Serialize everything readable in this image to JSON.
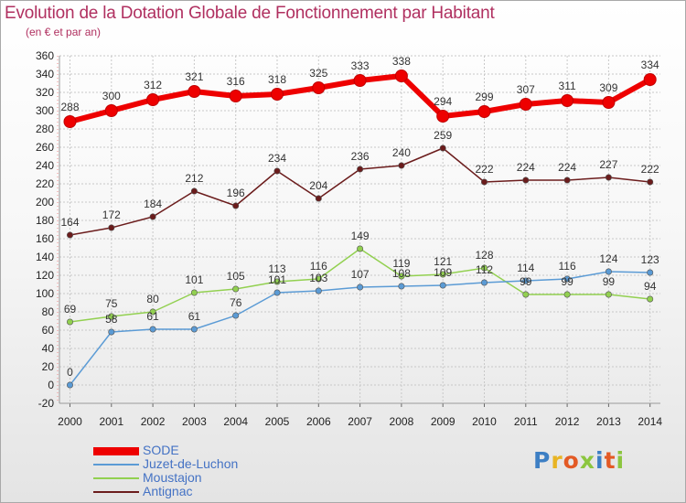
{
  "title": "Evolution de la Dotation Globale de Fonctionnement par Habitant",
  "subtitle": "(en € et par an)",
  "logo": {
    "text": "Proxiti",
    "letters": [
      {
        "char": "P",
        "color": "#3d7fc4"
      },
      {
        "char": "r",
        "color": "#e8b423"
      },
      {
        "char": "o",
        "color": "#e35a25"
      },
      {
        "char": "x",
        "color": "#8cc63f"
      },
      {
        "char": "i",
        "color": "#3d7fc4"
      },
      {
        "char": "t",
        "color": "#e35a25"
      },
      {
        "char": "i",
        "color": "#8cc63f"
      }
    ]
  },
  "chart_data": {
    "type": "line",
    "title": "Evolution de la Dotation Globale de Fonctionnement par Habitant",
    "subtitle": "(en € et par an)",
    "xlabel": "",
    "ylabel": "",
    "x": [
      "2000",
      "2001",
      "2002",
      "2003",
      "2004",
      "2005",
      "2006",
      "2007",
      "2008",
      "2009",
      "2010",
      "2011",
      "2012",
      "2013",
      "2014"
    ],
    "ylim": [
      -20,
      360
    ],
    "yticks": [
      -20,
      0,
      20,
      40,
      60,
      80,
      100,
      120,
      140,
      160,
      180,
      200,
      220,
      240,
      260,
      280,
      300,
      320,
      340,
      360
    ],
    "grid": true,
    "legend_position": "bottom-left",
    "series": [
      {
        "name": "SODE",
        "color": "#ee0000",
        "values": [
          288,
          300,
          312,
          321,
          316,
          318,
          325,
          333,
          338,
          294,
          299,
          307,
          311,
          309,
          334
        ]
      },
      {
        "name": "Juzet-de-Luchon",
        "color": "#5b9bd5",
        "values": [
          0,
          58,
          61,
          61,
          76,
          101,
          103,
          107,
          108,
          109,
          112,
          114,
          116,
          124,
          123
        ]
      },
      {
        "name": "Moustajon",
        "color": "#92d050",
        "values": [
          69,
          75,
          80,
          101,
          105,
          113,
          116,
          149,
          119,
          121,
          128,
          99,
          99,
          99,
          94
        ]
      },
      {
        "name": "Antignac",
        "color": "#6b1c1c",
        "values": [
          164,
          172,
          184,
          212,
          196,
          234,
          204,
          236,
          240,
          259,
          222,
          224,
          224,
          227,
          222
        ]
      }
    ]
  }
}
